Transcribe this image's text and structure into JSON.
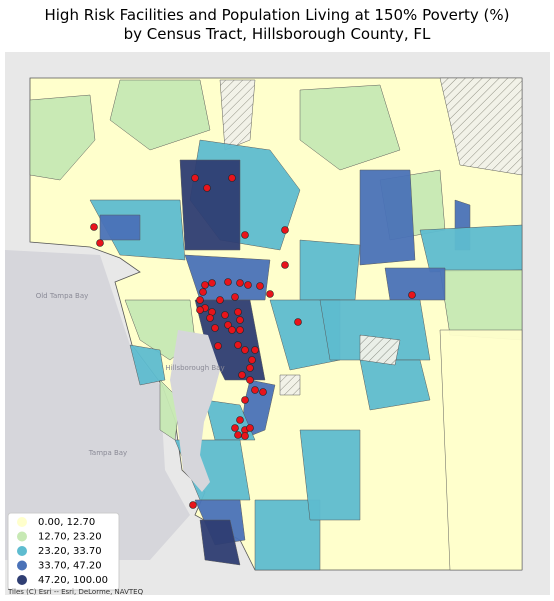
{
  "title": [
    "High Risk Facilities and Population Living at 150% Poverty (%)",
    "by Census Tract, Hillsborough County, FL"
  ],
  "legend": {
    "items": [
      {
        "label": "0.00,  12.70",
        "color": "#ffffcc"
      },
      {
        "label": "12.70,  23.20",
        "color": "#c7e9b4"
      },
      {
        "label": "23.20,  33.70",
        "color": "#5ebcd0"
      },
      {
        "label": "33.70,  47.20",
        "color": "#4a72b8"
      },
      {
        "label": "47.20, 100.00",
        "color": "#2f3e73"
      }
    ]
  },
  "facility_color": "#e8141b",
  "map_labels": [
    "Old Tampa Bay",
    "Hillsborough Bay",
    "Tampa Bay"
  ],
  "attribution": "Tiles (C) Esri -- Esri, DeLorme, NAVTEQ"
}
